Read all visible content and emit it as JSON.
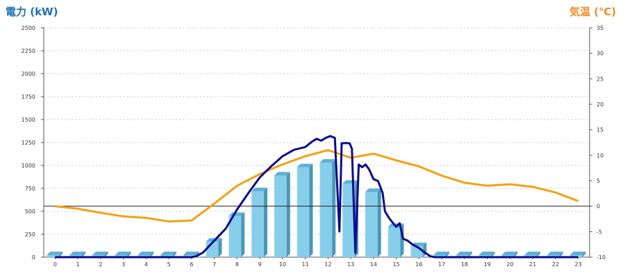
{
  "chart_data": {
    "type": "bar",
    "left_axis_title": "電力 (kW)",
    "right_axis_title": "気温 (℃)",
    "categories": [
      "0",
      "1",
      "2",
      "3",
      "4",
      "5",
      "6",
      "7",
      "8",
      "9",
      "10",
      "11",
      "12",
      "13",
      "14",
      "15",
      "16",
      "17",
      "18",
      "19",
      "20",
      "21",
      "22",
      "23"
    ],
    "ylim_left": [
      0,
      2500
    ],
    "yticks_left": [
      "0",
      "250",
      "500",
      "750",
      "1000",
      "1250",
      "1500",
      "1750",
      "2000",
      "2250",
      "2500"
    ],
    "ylim_right": [
      -10,
      35
    ],
    "yticks_right": [
      "-10",
      "-5",
      "0",
      "5",
      "10",
      "15",
      "20",
      "25",
      "30",
      "35"
    ],
    "grid": true,
    "bars": {
      "values": [
        0,
        0,
        0,
        0,
        0,
        0,
        0,
        170,
        450,
        720,
        890,
        980,
        1030,
        800,
        710,
        330,
        120,
        0,
        0,
        0,
        0,
        0,
        0,
        0
      ],
      "color": "#87ceeb",
      "side_color": "#4a97b8",
      "top_color": "#5fb0d6"
    },
    "power_line": {
      "color": "#0b0b8c",
      "points": [
        [
          0,
          0
        ],
        [
          1,
          0
        ],
        [
          2,
          0
        ],
        [
          3,
          0
        ],
        [
          4,
          0
        ],
        [
          5,
          0
        ],
        [
          6,
          0
        ],
        [
          6.2,
          10
        ],
        [
          6.5,
          50
        ],
        [
          7,
          180
        ],
        [
          7.5,
          310
        ],
        [
          8,
          520
        ],
        [
          8.5,
          700
        ],
        [
          9,
          870
        ],
        [
          9.5,
          990
        ],
        [
          10,
          1100
        ],
        [
          10.5,
          1170
        ],
        [
          11,
          1200
        ],
        [
          11.3,
          1260
        ],
        [
          11.5,
          1290
        ],
        [
          11.7,
          1270
        ],
        [
          11.9,
          1300
        ],
        [
          12.1,
          1320
        ],
        [
          12.3,
          1300
        ],
        [
          12.5,
          280
        ],
        [
          12.6,
          1240
        ],
        [
          12.8,
          1245
        ],
        [
          12.95,
          1240
        ],
        [
          13.05,
          1180
        ],
        [
          13.2,
          50
        ],
        [
          13.35,
          1010
        ],
        [
          13.5,
          980
        ],
        [
          13.65,
          1010
        ],
        [
          13.8,
          960
        ],
        [
          14,
          850
        ],
        [
          14.2,
          830
        ],
        [
          14.4,
          700
        ],
        [
          14.5,
          500
        ],
        [
          14.7,
          420
        ],
        [
          15,
          330
        ],
        [
          15.15,
          370
        ],
        [
          15.3,
          200
        ],
        [
          15.5,
          180
        ],
        [
          15.7,
          140
        ],
        [
          16,
          100
        ],
        [
          16.2,
          60
        ],
        [
          16.5,
          10
        ],
        [
          16.7,
          0
        ],
        [
          17,
          0
        ],
        [
          18,
          0
        ],
        [
          19,
          0
        ],
        [
          20,
          0
        ],
        [
          21,
          0
        ],
        [
          22,
          0
        ],
        [
          23,
          0
        ]
      ]
    },
    "temperature_line": {
      "color": "#f5a013",
      "points": [
        [
          0,
          0.0
        ],
        [
          1,
          -0.5
        ],
        [
          2,
          -1.3
        ],
        [
          3,
          -2.0
        ],
        [
          4,
          -2.3
        ],
        [
          5,
          -3.0
        ],
        [
          6,
          -2.8
        ],
        [
          7,
          0.5
        ],
        [
          8,
          4.0
        ],
        [
          9,
          6.3
        ],
        [
          10,
          8.2
        ],
        [
          11,
          9.8
        ],
        [
          12,
          11.0
        ],
        [
          13,
          9.5
        ],
        [
          14,
          10.3
        ],
        [
          15,
          9.0
        ],
        [
          16,
          7.8
        ],
        [
          17,
          6.0
        ],
        [
          18,
          4.6
        ],
        [
          19,
          4.0
        ],
        [
          20,
          4.3
        ],
        [
          21,
          3.8
        ],
        [
          22,
          2.7
        ],
        [
          23,
          1.0
        ]
      ]
    },
    "reference_line_right_value": 0
  }
}
